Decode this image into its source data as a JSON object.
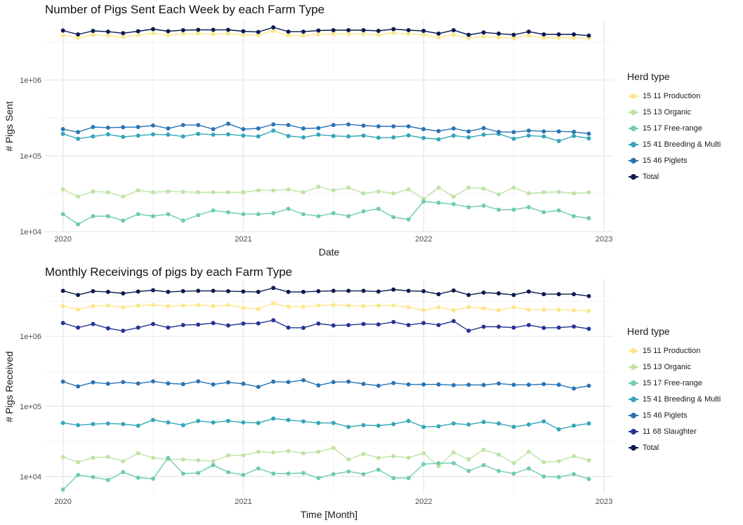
{
  "chart_data": [
    {
      "type": "line",
      "title": "Number of Pigs Sent Each Week by each Farm Type",
      "xlabel": "Date",
      "ylabel": "# Pigs Sent",
      "yscale": "log",
      "ylim": [
        10000,
        6000000
      ],
      "xlim": [
        2019.9,
        2023.05
      ],
      "x_ticks": [
        "2020",
        "2021",
        "2022",
        "2023"
      ],
      "y_ticks": [
        "1e+04",
        "1e+05",
        "1e+06"
      ],
      "grid": true,
      "legend_title": "Herd type",
      "legend_position": "right",
      "x_start": 2020.0,
      "x_step": 0.0833,
      "series": [
        {
          "name": "15 11 Production",
          "color": "#fde68a",
          "values": [
            3900000,
            3600000,
            3950000,
            3850000,
            3700000,
            3900000,
            4150000,
            3900000,
            4050000,
            4100000,
            4050000,
            4100000,
            3950000,
            3900000,
            4450000,
            3850000,
            3850000,
            4000000,
            4050000,
            4050000,
            4050000,
            3950000,
            4200000,
            4050000,
            3950000,
            3650000,
            3950000,
            3550000,
            3750000,
            3650000,
            3550000,
            3850000,
            3600000,
            3600000,
            3600000,
            3550000
          ]
        },
        {
          "name": "15 13 Organic",
          "color": "#bfe3a6",
          "values": [
            36000,
            29000,
            34000,
            33000,
            29000,
            35000,
            33000,
            34000,
            33500,
            33000,
            33000,
            33000,
            33000,
            35000,
            35000,
            36000,
            33000,
            39000,
            35000,
            38000,
            32000,
            34000,
            32000,
            36000,
            27000,
            38000,
            29000,
            38000,
            37000,
            31000,
            38000,
            32000,
            33000,
            33500,
            32000,
            33000
          ]
        },
        {
          "name": "15 17 Free-range",
          "color": "#6fcbb1",
          "values": [
            17000,
            12500,
            16000,
            16000,
            14000,
            17000,
            16000,
            17000,
            14000,
            16500,
            19000,
            18000,
            17000,
            17000,
            17500,
            20000,
            17000,
            16000,
            17500,
            16000,
            18500,
            20000,
            15500,
            14500,
            25000,
            24000,
            23000,
            21000,
            22000,
            19500,
            19500,
            21000,
            18000,
            19000,
            16000,
            15000
          ]
        },
        {
          "name": "15 41 Breeding & Multi",
          "color": "#33a6b8",
          "values": [
            195000,
            168000,
            180000,
            192000,
            178000,
            185000,
            192000,
            190000,
            180000,
            195000,
            190000,
            192000,
            185000,
            180000,
            215000,
            183000,
            175000,
            190000,
            183000,
            180000,
            185000,
            173000,
            175000,
            186000,
            172000,
            165000,
            185000,
            175000,
            190000,
            195000,
            168000,
            185000,
            180000,
            157000,
            183000,
            170000
          ]
        },
        {
          "name": "15 46 Piglets",
          "color": "#2a74b4",
          "values": [
            225000,
            205000,
            240000,
            235000,
            238000,
            240000,
            252000,
            230000,
            255000,
            255000,
            225000,
            265000,
            225000,
            230000,
            260000,
            255000,
            230000,
            232000,
            255000,
            260000,
            250000,
            245000,
            245000,
            245000,
            225000,
            212000,
            230000,
            210000,
            232000,
            207000,
            205000,
            215000,
            210000,
            210000,
            207000,
            196000
          ]
        },
        {
          "name": "Total",
          "color": "#0c1a4f",
          "values": [
            4500000,
            4000000,
            4450000,
            4350000,
            4150000,
            4400000,
            4700000,
            4400000,
            4550000,
            4600000,
            4600000,
            4600000,
            4400000,
            4300000,
            4950000,
            4350000,
            4350000,
            4500000,
            4550000,
            4550000,
            4550000,
            4450000,
            4700000,
            4550000,
            4450000,
            4100000,
            4550000,
            3950000,
            4250000,
            4100000,
            3950000,
            4350000,
            4000000,
            4000000,
            4000000,
            3850000
          ]
        }
      ]
    },
    {
      "type": "line",
      "title": "Monthly Receivings of pigs by each Farm Type",
      "xlabel": "Time [Month]",
      "ylabel": "# Pigs Received",
      "yscale": "log",
      "ylim": [
        5600,
        6500000
      ],
      "xlim": [
        2019.9,
        2023.05
      ],
      "x_ticks": [
        "2020",
        "2021",
        "2022",
        "2023"
      ],
      "y_ticks": [
        "1e+04",
        "1e+05",
        "1e+06"
      ],
      "grid": true,
      "legend_title": "Herd type",
      "legend_position": "right",
      "x_start": 2020.0,
      "x_step": 0.0833,
      "series": [
        {
          "name": "15 11 Production",
          "color": "#fde68a",
          "values": [
            2700000,
            2400000,
            2700000,
            2750000,
            2600000,
            2750000,
            2800000,
            2700000,
            2750000,
            2800000,
            2700000,
            2800000,
            2550000,
            2450000,
            2950000,
            2650000,
            2650000,
            2750000,
            2800000,
            2750000,
            2700000,
            2750000,
            2750000,
            2600000,
            2350000,
            2600000,
            2350000,
            2600000,
            2500000,
            2350000,
            2600000,
            2400000,
            2400000,
            2400000,
            2350000,
            2300000
          ]
        },
        {
          "name": "15 13 Organic",
          "color": "#bfe3a6",
          "values": [
            19000,
            16000,
            18500,
            19000,
            16500,
            21500,
            18500,
            17500,
            17500,
            17000,
            16500,
            20000,
            20000,
            22500,
            22000,
            23000,
            21500,
            22500,
            25500,
            17500,
            21000,
            18500,
            19500,
            18500,
            21500,
            14000,
            22000,
            17500,
            24000,
            20500,
            15500,
            22500,
            16000,
            16500,
            19500,
            17000
          ]
        },
        {
          "name": "15 17 Free-range",
          "color": "#6fcbb1",
          "values": [
            6500,
            10500,
            9800,
            8900,
            11500,
            9600,
            9300,
            18500,
            11000,
            11200,
            14500,
            11500,
            10500,
            13000,
            11000,
            11000,
            11200,
            9500,
            10800,
            11800,
            10800,
            12500,
            9500,
            9500,
            15000,
            15500,
            15500,
            12000,
            14500,
            12000,
            11000,
            13000,
            10000,
            9800,
            10800,
            9200
          ]
        },
        {
          "name": "15 41 Breeding & Multi",
          "color": "#33a6b8",
          "values": [
            58000,
            54000,
            56000,
            57000,
            56000,
            53000,
            64000,
            59000,
            54000,
            62000,
            59000,
            62000,
            59000,
            58000,
            67000,
            64000,
            61000,
            58000,
            58000,
            51000,
            54000,
            53000,
            56000,
            62000,
            51000,
            52000,
            57000,
            55000,
            60000,
            57000,
            51000,
            55000,
            61000,
            47000,
            53000,
            57000
          ]
        },
        {
          "name": "15 46 Piglets",
          "color": "#2a74b4",
          "values": [
            225000,
            193000,
            220000,
            210000,
            222000,
            212000,
            228000,
            213000,
            208000,
            228000,
            206000,
            220000,
            210000,
            190000,
            225000,
            222000,
            237000,
            200000,
            222000,
            225000,
            209000,
            197000,
            215000,
            206000,
            206000,
            206000,
            201000,
            203000,
            202000,
            212000,
            203000,
            203000,
            208000,
            204000,
            180000,
            197000
          ]
        },
        {
          "name": " 11 68 Slaughter",
          "color": "#253494",
          "values": [
            1550000,
            1330000,
            1500000,
            1300000,
            1200000,
            1330000,
            1500000,
            1330000,
            1450000,
            1470000,
            1550000,
            1430000,
            1520000,
            1530000,
            1700000,
            1330000,
            1320000,
            1520000,
            1430000,
            1450000,
            1500000,
            1480000,
            1600000,
            1450000,
            1550000,
            1450000,
            1650000,
            1200000,
            1370000,
            1370000,
            1330000,
            1450000,
            1320000,
            1330000,
            1380000,
            1280000
          ]
        },
        {
          "name": "Total",
          "color": "#0c1a4f",
          "values": [
            4450000,
            3900000,
            4400000,
            4300000,
            4100000,
            4350000,
            4550000,
            4300000,
            4400000,
            4450000,
            4450000,
            4400000,
            4350000,
            4300000,
            4900000,
            4300000,
            4300000,
            4400000,
            4450000,
            4450000,
            4450000,
            4350000,
            4650000,
            4450000,
            4400000,
            4000000,
            4500000,
            3900000,
            4200000,
            4100000,
            3900000,
            4350000,
            4000000,
            4000000,
            4000000,
            3750000
          ]
        }
      ]
    }
  ]
}
